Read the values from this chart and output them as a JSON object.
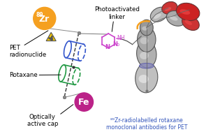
{
  "bg_color": "#ffffff",
  "labels": {
    "pet_radionuclide": "PET\nradionuclide",
    "rotaxane": "Rotaxane",
    "photoactivated": "Photoactivated\nlinker",
    "optically": "Optically\nactive cap",
    "antibody": "⁸⁹Zr-radiolabelled rotaxane\nmonoclonal antibodies for PET"
  },
  "zr_circle_color": "#f5a020",
  "fe_circle_color": "#bb2288",
  "wheel1_color": "#3355cc",
  "wheel2_color": "#229944",
  "linker_color": "#cc44cc",
  "axle_color": "#333333",
  "orange_arc": "#f5a020",
  "label_color": "#000000",
  "antibody_label_color": "#3355bb"
}
